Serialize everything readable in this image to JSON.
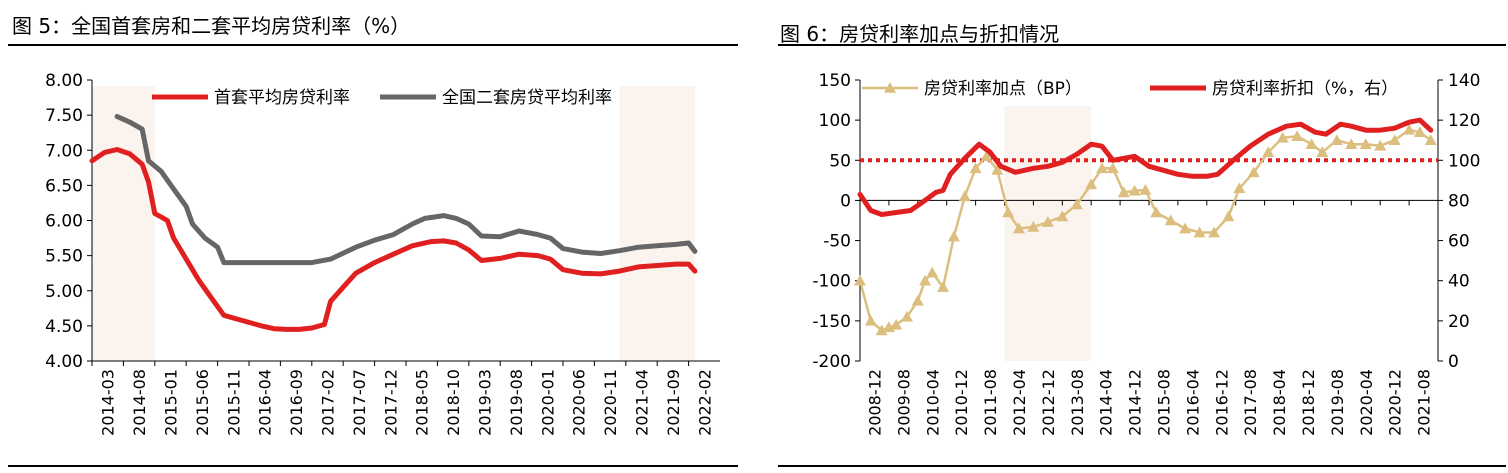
{
  "figures": [
    {
      "title": "图 5：全国首套房和二套平均房贷利率（%）"
    },
    {
      "title": "图 6：房贷利率加点与折扣情况"
    }
  ],
  "colors": {
    "red": "#e02020",
    "gray": "#666666",
    "gold": "#dcbf7f",
    "shade": "#fbf4ee",
    "axis": "#000000"
  },
  "chart_data": [
    {
      "type": "line",
      "title": "",
      "xlabel": "",
      "ylabel": "",
      "ylim": [
        4.0,
        8.0
      ],
      "yticks": [
        "8.00",
        "7.50",
        "7.00",
        "6.50",
        "6.00",
        "5.50",
        "5.00",
        "4.50",
        "4.00"
      ],
      "xticks": [
        "2014-03",
        "2014-08",
        "2015-01",
        "2015-06",
        "2015-11",
        "2016-04",
        "2016-09",
        "2017-02",
        "2017-07",
        "2017-12",
        "2018-05",
        "2018-10",
        "2019-03",
        "2019-08",
        "2020-01",
        "2020-06",
        "2020-11",
        "2021-04",
        "2021-09",
        "2022-02"
      ],
      "shaded_periods": [
        [
          "2014-03",
          "2015-01"
        ],
        [
          "2021-03",
          "2022-03"
        ]
      ],
      "legend": "top",
      "series": [
        {
          "name": "首套平均房贷利率",
          "color": "#e02020",
          "points": [
            [
              "2014-03",
              6.85
            ],
            [
              "2014-05",
              6.97
            ],
            [
              "2014-07",
              7.01
            ],
            [
              "2014-09",
              6.95
            ],
            [
              "2014-11",
              6.8
            ],
            [
              "2014-12",
              6.55
            ],
            [
              "2015-01",
              6.1
            ],
            [
              "2015-03",
              6.0
            ],
            [
              "2015-04",
              5.75
            ],
            [
              "2015-06",
              5.45
            ],
            [
              "2015-08",
              5.15
            ],
            [
              "2015-10",
              4.9
            ],
            [
              "2015-12",
              4.65
            ],
            [
              "2016-02",
              4.6
            ],
            [
              "2016-04",
              4.55
            ],
            [
              "2016-06",
              4.5
            ],
            [
              "2016-08",
              4.46
            ],
            [
              "2016-10",
              4.45
            ],
            [
              "2016-12",
              4.45
            ],
            [
              "2017-02",
              4.47
            ],
            [
              "2017-04",
              4.52
            ],
            [
              "2017-05",
              4.85
            ],
            [
              "2017-07",
              5.05
            ],
            [
              "2017-09",
              5.25
            ],
            [
              "2017-12",
              5.4
            ],
            [
              "2018-03",
              5.52
            ],
            [
              "2018-06",
              5.64
            ],
            [
              "2018-09",
              5.7
            ],
            [
              "2018-11",
              5.71
            ],
            [
              "2019-01",
              5.68
            ],
            [
              "2019-03",
              5.58
            ],
            [
              "2019-05",
              5.43
            ],
            [
              "2019-08",
              5.46
            ],
            [
              "2019-11",
              5.52
            ],
            [
              "2020-02",
              5.5
            ],
            [
              "2020-04",
              5.45
            ],
            [
              "2020-06",
              5.3
            ],
            [
              "2020-09",
              5.25
            ],
            [
              "2020-12",
              5.24
            ],
            [
              "2021-03",
              5.28
            ],
            [
              "2021-06",
              5.34
            ],
            [
              "2021-09",
              5.36
            ],
            [
              "2021-12",
              5.38
            ],
            [
              "2022-02",
              5.38
            ],
            [
              "2022-03",
              5.28
            ]
          ]
        },
        {
          "name": "全国二套房贷平均利率",
          "color": "#666666",
          "points": [
            [
              "2014-07",
              7.48
            ],
            [
              "2014-09",
              7.4
            ],
            [
              "2014-11",
              7.3
            ],
            [
              "2014-12",
              6.85
            ],
            [
              "2015-02",
              6.7
            ],
            [
              "2015-04",
              6.45
            ],
            [
              "2015-06",
              6.2
            ],
            [
              "2015-07",
              5.95
            ],
            [
              "2015-09",
              5.75
            ],
            [
              "2015-11",
              5.62
            ],
            [
              "2015-12",
              5.4
            ],
            [
              "2016-04",
              5.4
            ],
            [
              "2016-10",
              5.4
            ],
            [
              "2017-02",
              5.4
            ],
            [
              "2017-05",
              5.45
            ],
            [
              "2017-09",
              5.62
            ],
            [
              "2017-12",
              5.72
            ],
            [
              "2018-03",
              5.8
            ],
            [
              "2018-06",
              5.95
            ],
            [
              "2018-08",
              6.03
            ],
            [
              "2018-11",
              6.07
            ],
            [
              "2019-01",
              6.03
            ],
            [
              "2019-03",
              5.95
            ],
            [
              "2019-05",
              5.78
            ],
            [
              "2019-08",
              5.77
            ],
            [
              "2019-11",
              5.85
            ],
            [
              "2020-02",
              5.8
            ],
            [
              "2020-04",
              5.75
            ],
            [
              "2020-06",
              5.6
            ],
            [
              "2020-09",
              5.55
            ],
            [
              "2020-12",
              5.53
            ],
            [
              "2021-03",
              5.57
            ],
            [
              "2021-06",
              5.62
            ],
            [
              "2021-09",
              5.64
            ],
            [
              "2021-12",
              5.66
            ],
            [
              "2022-02",
              5.68
            ],
            [
              "2022-03",
              5.56
            ]
          ]
        }
      ]
    },
    {
      "type": "line",
      "title": "",
      "xlabel": "",
      "ylabel": "",
      "ylim": [
        -200,
        150
      ],
      "y2lim": [
        0,
        140
      ],
      "yticks": [
        "150",
        "100",
        "50",
        "0",
        "-50",
        "-100",
        "-150",
        "-200"
      ],
      "y2ticks": [
        "140",
        "120",
        "100",
        "80",
        "60",
        "40",
        "20",
        "0"
      ],
      "xticks": [
        "2008-12",
        "2009-08",
        "2010-04",
        "2010-12",
        "2011-08",
        "2012-04",
        "2012-12",
        "2013-08",
        "2014-04",
        "2014-12",
        "2015-08",
        "2016-04",
        "2016-12",
        "2017-08",
        "2018-04",
        "2018-12",
        "2019-08",
        "2020-04",
        "2020-12",
        "2021-08"
      ],
      "shaded_periods": [
        [
          "2012-04",
          "2014-04"
        ]
      ],
      "reference_line": {
        "axis": "right",
        "value": 100,
        "style": "dotted",
        "color": "#e02020"
      },
      "legend": "top",
      "series": [
        {
          "name": "房贷利率加点（BP）",
          "axis": "left",
          "color": "#dcbf7f",
          "marker": "triangle",
          "points": [
            [
              "2008-12",
              -100
            ],
            [
              "2009-03",
              -150
            ],
            [
              "2009-06",
              -162
            ],
            [
              "2009-08",
              -158
            ],
            [
              "2009-10",
              -155
            ],
            [
              "2010-01",
              -145
            ],
            [
              "2010-04",
              -125
            ],
            [
              "2010-06",
              -100
            ],
            [
              "2010-08",
              -90
            ],
            [
              "2010-11",
              -108
            ],
            [
              "2011-02",
              -45
            ],
            [
              "2011-05",
              5
            ],
            [
              "2011-08",
              40
            ],
            [
              "2011-11",
              55
            ],
            [
              "2012-02",
              38
            ],
            [
              "2012-05",
              -15
            ],
            [
              "2012-08",
              -35
            ],
            [
              "2012-12",
              -33
            ],
            [
              "2013-04",
              -27
            ],
            [
              "2013-08",
              -20
            ],
            [
              "2013-12",
              -5
            ],
            [
              "2014-04",
              20
            ],
            [
              "2014-07",
              40
            ],
            [
              "2014-10",
              40
            ],
            [
              "2015-01",
              10
            ],
            [
              "2015-04",
              12
            ],
            [
              "2015-07",
              13
            ],
            [
              "2015-10",
              -15
            ],
            [
              "2016-02",
              -25
            ],
            [
              "2016-06",
              -35
            ],
            [
              "2016-10",
              -40
            ],
            [
              "2017-02",
              -40
            ],
            [
              "2017-06",
              -20
            ],
            [
              "2017-09",
              15
            ],
            [
              "2018-01",
              35
            ],
            [
              "2018-05",
              60
            ],
            [
              "2018-09",
              78
            ],
            [
              "2019-01",
              80
            ],
            [
              "2019-05",
              70
            ],
            [
              "2019-08",
              60
            ],
            [
              "2019-12",
              75
            ],
            [
              "2020-04",
              70
            ],
            [
              "2020-08",
              70
            ],
            [
              "2020-12",
              68
            ],
            [
              "2021-04",
              75
            ],
            [
              "2021-08",
              88
            ],
            [
              "2021-11",
              85
            ],
            [
              "2022-02",
              75
            ]
          ]
        },
        {
          "name": "房贷利率折扣（%，右）",
          "axis": "right",
          "color": "#e02020",
          "points": [
            [
              "2008-12",
              83
            ],
            [
              "2009-03",
              75
            ],
            [
              "2009-06",
              73
            ],
            [
              "2009-10",
              74
            ],
            [
              "2010-02",
              75
            ],
            [
              "2010-06",
              80
            ],
            [
              "2010-09",
              84
            ],
            [
              "2010-11",
              85
            ],
            [
              "2011-01",
              93
            ],
            [
              "2011-05",
              101
            ],
            [
              "2011-09",
              108
            ],
            [
              "2011-12",
              104
            ],
            [
              "2012-03",
              97
            ],
            [
              "2012-07",
              94
            ],
            [
              "2012-12",
              96
            ],
            [
              "2013-04",
              97
            ],
            [
              "2013-08",
              99
            ],
            [
              "2013-12",
              103
            ],
            [
              "2014-04",
              108
            ],
            [
              "2014-07",
              107
            ],
            [
              "2014-10",
              100
            ],
            [
              "2015-01",
              101
            ],
            [
              "2015-04",
              102
            ],
            [
              "2015-08",
              97
            ],
            [
              "2015-12",
              95
            ],
            [
              "2016-04",
              93
            ],
            [
              "2016-08",
              92
            ],
            [
              "2016-12",
              92
            ],
            [
              "2017-03",
              93
            ],
            [
              "2017-08",
              101
            ],
            [
              "2017-12",
              107
            ],
            [
              "2018-05",
              113
            ],
            [
              "2018-10",
              117
            ],
            [
              "2019-02",
              118
            ],
            [
              "2019-06",
              114
            ],
            [
              "2019-09",
              113
            ],
            [
              "2020-01",
              118
            ],
            [
              "2020-04",
              117
            ],
            [
              "2020-08",
              115
            ],
            [
              "2020-12",
              115
            ],
            [
              "2021-04",
              116
            ],
            [
              "2021-08",
              119
            ],
            [
              "2021-11",
              120
            ],
            [
              "2022-02",
              115
            ]
          ]
        }
      ]
    }
  ]
}
